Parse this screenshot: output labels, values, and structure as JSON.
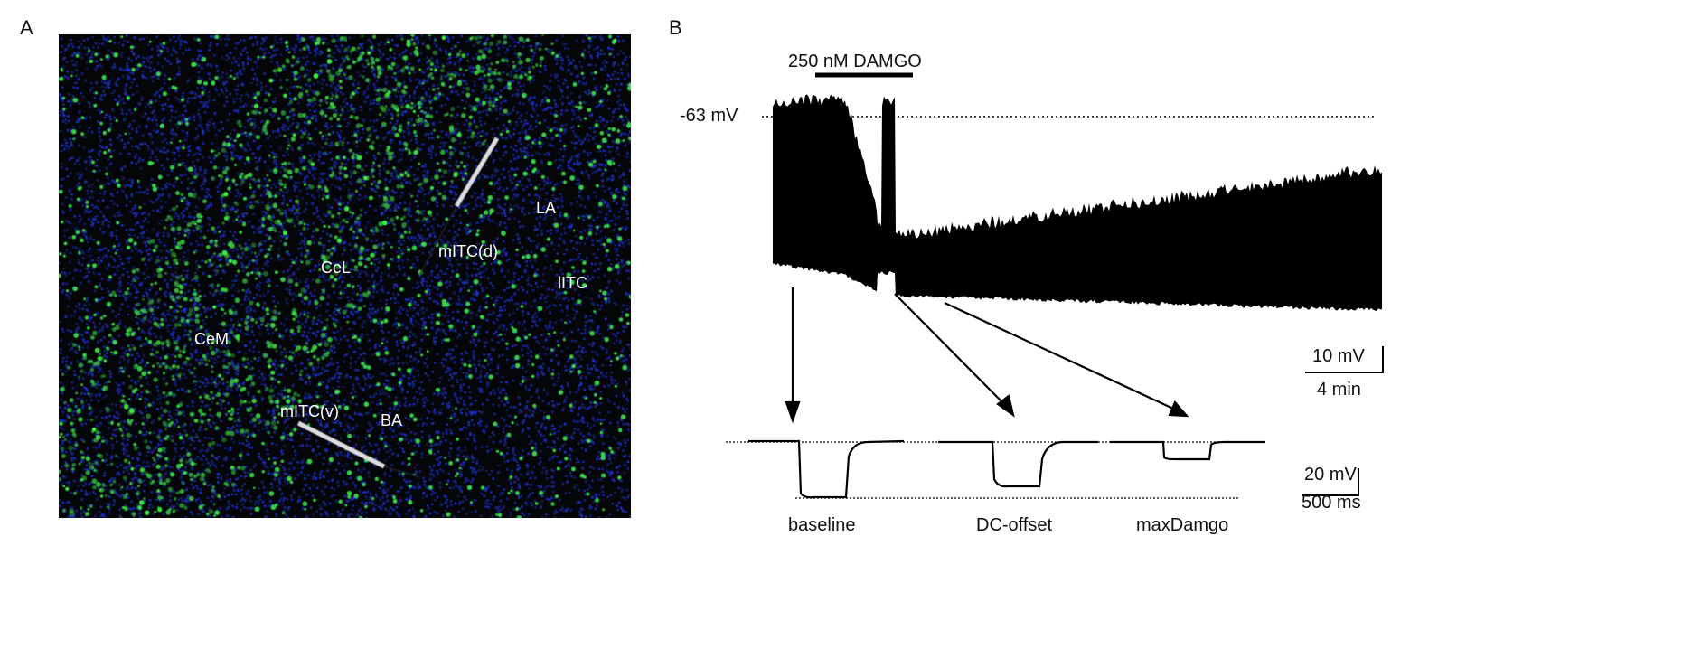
{
  "panel_a": {
    "label": "A",
    "regions": {
      "CeL": "CeL",
      "CeM": "CeM",
      "mITC_d": "mITC(d)",
      "mITC_v": "mITC(v)",
      "LA": "LA",
      "BA": "BA",
      "lITC": "lITC"
    },
    "colors": {
      "background": "#050608",
      "nuclei": "#1a2cd8",
      "labelled_cells": "#3cff3c"
    }
  },
  "panel_b": {
    "label": "B",
    "drug_label": "250 nM DAMGO",
    "baseline_potential": "-63 mV",
    "scale_top": {
      "voltage": "10 mV",
      "time": "4 min"
    },
    "scale_bottom": {
      "voltage": "20 mV",
      "time": "500 ms"
    },
    "sweep_labels": [
      "baseline",
      "DC-offset",
      "maxDamgo"
    ]
  }
}
